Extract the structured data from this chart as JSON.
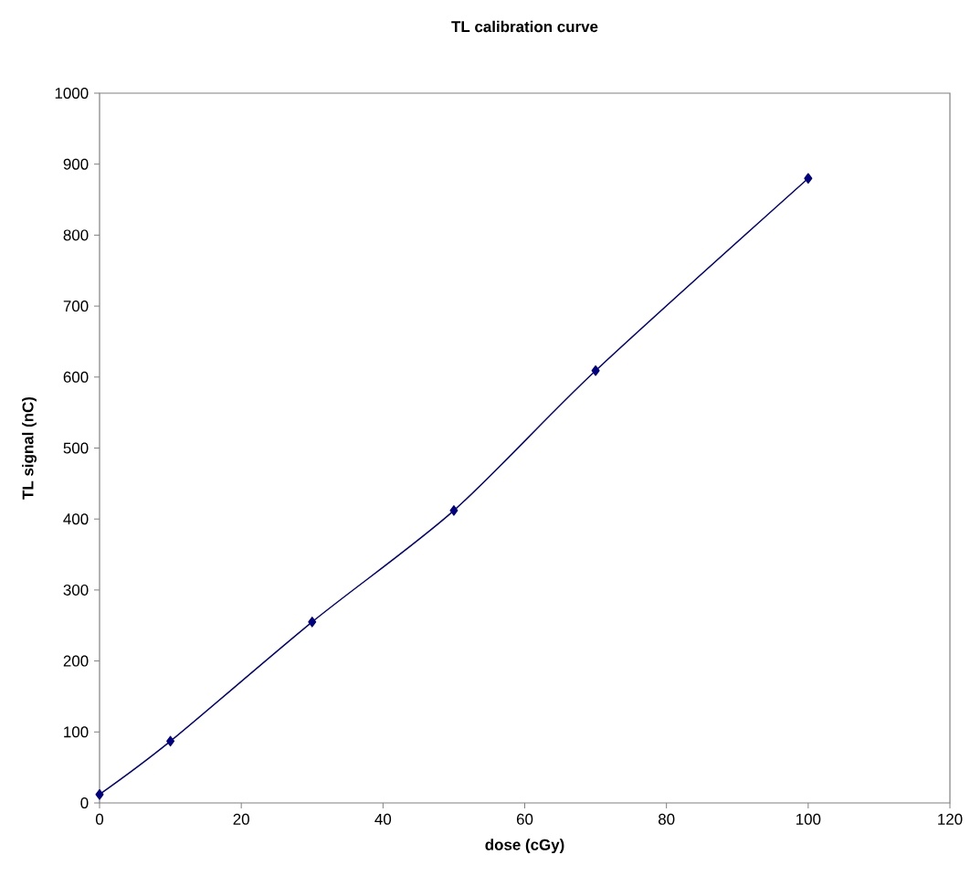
{
  "chart_data": {
    "type": "line",
    "title": "TL calibration curve",
    "xlabel": "dose (cGy)",
    "ylabel": "TL signal (nC)",
    "x": [
      0,
      10,
      30,
      50,
      70,
      100
    ],
    "series": [
      {
        "color": "#000080",
        "values": [
          12,
          87,
          255,
          412,
          609,
          880
        ]
      }
    ],
    "xlim": [
      0,
      120
    ],
    "xticks": [
      0,
      20,
      40,
      60,
      80,
      100,
      120
    ],
    "ylim": [
      0,
      1000
    ],
    "yticks": [
      0,
      100,
      200,
      300,
      400,
      500,
      600,
      700,
      800,
      900,
      1000
    ],
    "marker": "diamond",
    "line_style": "solid",
    "grid": false
  }
}
